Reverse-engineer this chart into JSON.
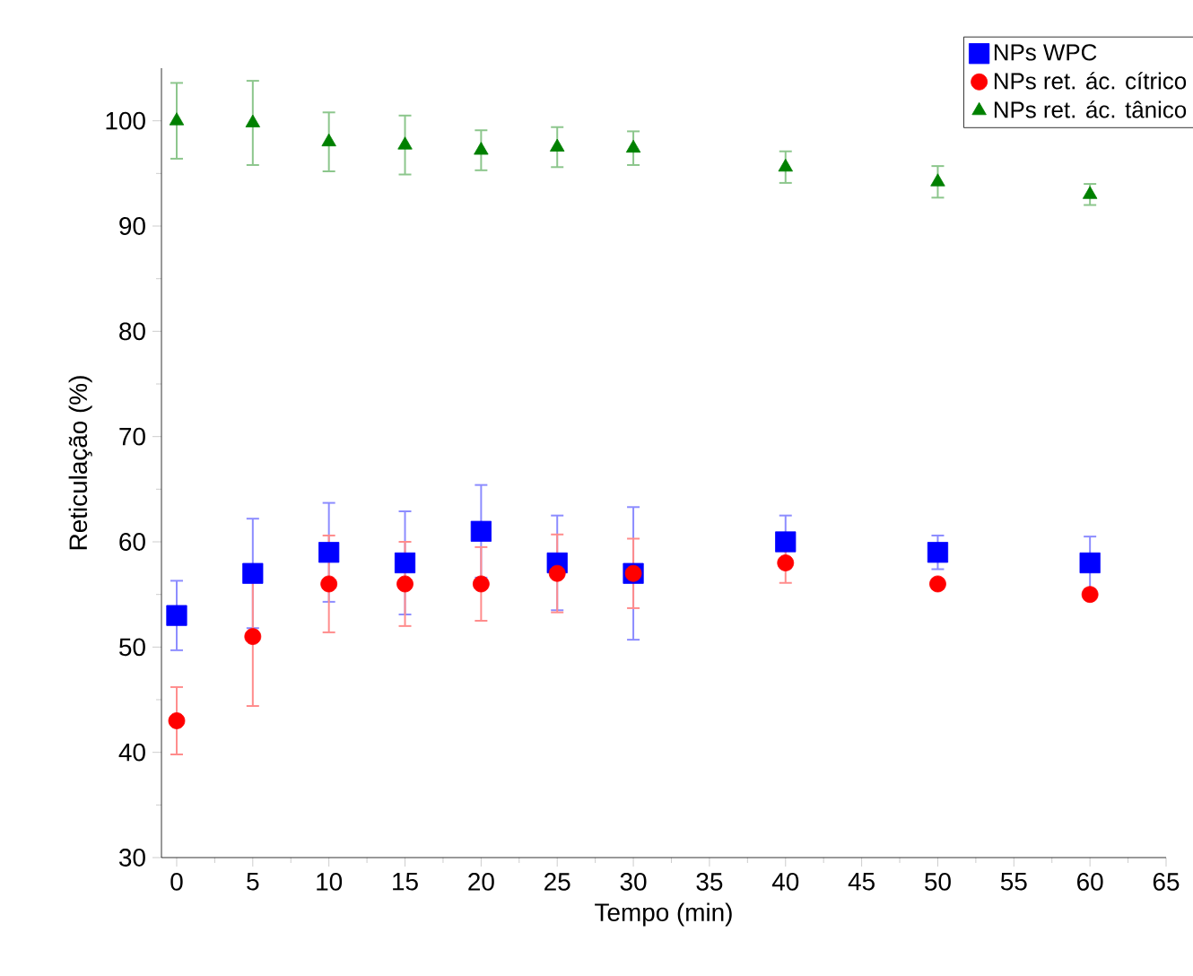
{
  "chart_data": {
    "type": "scatter",
    "xlabel": "Tempo (min)",
    "ylabel": "Reticulação (%)",
    "x": [
      0,
      5,
      10,
      15,
      20,
      25,
      30,
      40,
      50,
      60
    ],
    "series": [
      {
        "name": "NPs WPC",
        "color": "#0000ff",
        "marker": "square",
        "values": [
          53,
          57,
          59,
          58,
          61,
          58,
          57,
          60,
          59,
          58
        ],
        "errors": [
          3.3,
          5.2,
          4.7,
          4.9,
          4.4,
          4.5,
          6.3,
          2.5,
          1.6,
          2.5
        ]
      },
      {
        "name": "NPs ret. ác. cítrico",
        "color": "#ff0000",
        "marker": "circle",
        "values": [
          43,
          51,
          56,
          56,
          56,
          57,
          57,
          58,
          56,
          55
        ],
        "errors": [
          3.2,
          6.6,
          4.6,
          4,
          3.5,
          3.7,
          3.3,
          1.9,
          0.5,
          0.5
        ]
      },
      {
        "name": "NPs ret. ác. tânico",
        "color": "#008000",
        "marker": "triangle",
        "values": [
          100,
          99.8,
          98,
          97.7,
          97.2,
          97.5,
          97.4,
          95.6,
          94.2,
          93
        ],
        "errors": [
          3.6,
          4,
          2.8,
          2.8,
          1.9,
          1.9,
          1.6,
          1.5,
          1.5,
          1
        ]
      }
    ],
    "xlim": [
      -1,
      65
    ],
    "xticks": [
      0,
      5,
      10,
      15,
      20,
      25,
      30,
      35,
      40,
      45,
      50,
      55,
      60,
      65
    ],
    "ylim": [
      30,
      105
    ],
    "yticks": [
      30,
      40,
      50,
      60,
      70,
      80,
      90,
      100
    ],
    "grid": false,
    "legend": "top right"
  }
}
